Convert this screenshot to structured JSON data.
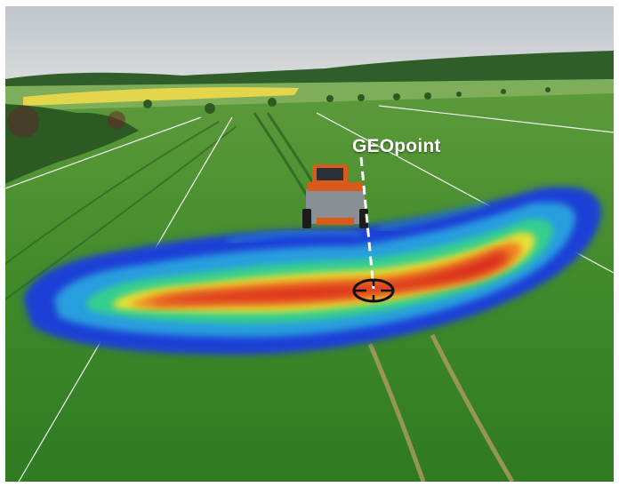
{
  "photo": {
    "description_label": "GEOpoint"
  },
  "colors": {
    "sky": "#c9ced3",
    "field_green": "#3f8a2a",
    "rapeseed_yellow": "#e4d64a",
    "heat_low": "#1f3fd6",
    "heat_mid": "#2fd38a",
    "heat_high": "#d9261c",
    "tractor_orange": "#d95a1a"
  }
}
